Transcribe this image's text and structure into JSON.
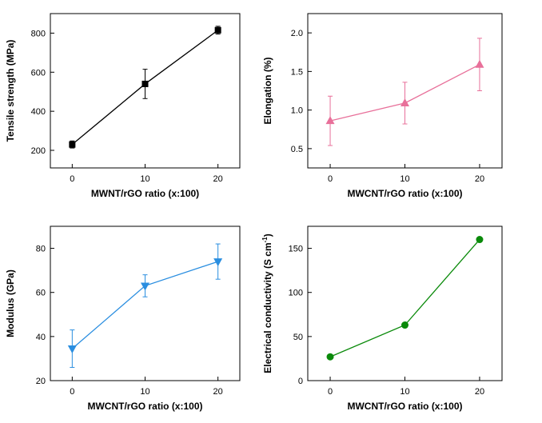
{
  "colors": {
    "panel1": "#000000",
    "panel2": "#e8709a",
    "panel3": "#2a8ee0",
    "panel4": "#0a8a0a"
  },
  "chart_data": [
    {
      "type": "line",
      "marker": "square",
      "color": "#000000",
      "xlabel": "MWNT/rGO ratio (x:100)",
      "ylabel": "Tensile strength (MPa)",
      "ylabel_sup": "",
      "ylabel_tail": "",
      "x": [
        0,
        10,
        20
      ],
      "y": [
        230,
        540,
        815
      ],
      "yerr": [
        18,
        75,
        20
      ],
      "xlim": [
        -3,
        23
      ],
      "ylim": [
        110,
        900
      ],
      "xticks": [
        0,
        10,
        20
      ],
      "yticks": [
        200,
        400,
        600,
        800
      ],
      "ytick_labels": [
        "200",
        "400",
        "600",
        "800"
      ]
    },
    {
      "type": "line",
      "marker": "triangle-up",
      "color": "#e8709a",
      "xlabel": "MWCNT/rGO ratio (x:100)",
      "ylabel": "Elongation (%)",
      "ylabel_sup": "",
      "ylabel_tail": "",
      "x": [
        0,
        10,
        20
      ],
      "y": [
        0.86,
        1.09,
        1.59
      ],
      "yerr": [
        0.32,
        0.27,
        0.34
      ],
      "xlim": [
        -3,
        23
      ],
      "ylim": [
        0.25,
        2.25
      ],
      "xticks": [
        0,
        10,
        20
      ],
      "yticks": [
        0.5,
        1.0,
        1.5,
        2.0
      ],
      "ytick_labels": [
        "0.5",
        "1.0",
        "1.5",
        "2.0"
      ]
    },
    {
      "type": "line",
      "marker": "triangle-down",
      "color": "#2a8ee0",
      "xlabel": "MWCNT/rGO ratio (x:100)",
      "ylabel": "Modulus (GPa)",
      "ylabel_sup": "",
      "ylabel_tail": "",
      "x": [
        0,
        10,
        20
      ],
      "y": [
        34.5,
        63,
        74
      ],
      "yerr": [
        8.5,
        5,
        8
      ],
      "xlim": [
        -3,
        23
      ],
      "ylim": [
        20,
        90
      ],
      "xticks": [
        0,
        10,
        20
      ],
      "yticks": [
        20,
        40,
        60,
        80
      ],
      "ytick_labels": [
        "20",
        "40",
        "60",
        "80"
      ]
    },
    {
      "type": "line",
      "marker": "circle",
      "color": "#0a8a0a",
      "xlabel": "MWCNT/rGO ratio (x:100)",
      "ylabel": "Electrical conductivity (S cm",
      "ylabel_sup": "-1",
      "ylabel_tail": ")",
      "x": [
        0,
        10,
        20
      ],
      "y": [
        27,
        63,
        160
      ],
      "yerr": [
        0,
        0,
        0
      ],
      "xlim": [
        -3,
        23
      ],
      "ylim": [
        0,
        175
      ],
      "xticks": [
        0,
        10,
        20
      ],
      "yticks": [
        0,
        50,
        100,
        150
      ],
      "ytick_labels": [
        "0",
        "50",
        "100",
        "150"
      ]
    }
  ]
}
